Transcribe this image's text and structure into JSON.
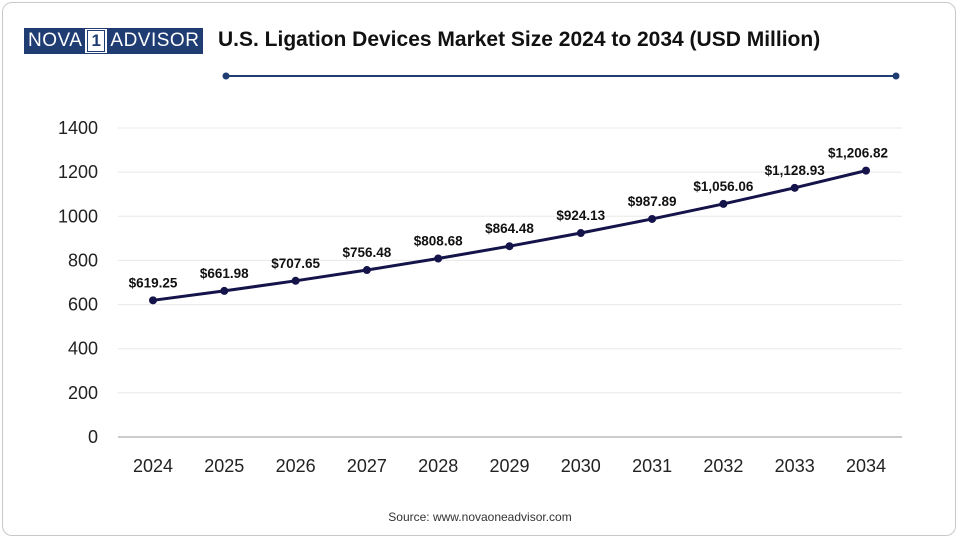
{
  "header": {
    "logo": {
      "left": "NOVA",
      "middle": "1",
      "right": "ADVISOR"
    },
    "title": "U.S. Ligation Devices Market Size 2024 to 2034 (USD Million)"
  },
  "footer": {
    "source": "Source: www.novaoneadvisor.com"
  },
  "colors": {
    "line": "#14134a",
    "accent": "#1f3d73",
    "grid": "#e8e8e8",
    "axis": "#999999"
  },
  "chart_data": {
    "type": "line",
    "title": "U.S. Ligation Devices Market Size 2024 to 2034 (USD Million)",
    "xlabel": "",
    "ylabel": "",
    "categories": [
      "2024",
      "2025",
      "2026",
      "2027",
      "2028",
      "2029",
      "2030",
      "2031",
      "2032",
      "2033",
      "2034"
    ],
    "values": [
      619.25,
      661.98,
      707.65,
      756.48,
      808.68,
      864.48,
      924.13,
      987.89,
      1056.06,
      1128.93,
      1206.82
    ],
    "data_labels": [
      "$619.25",
      "$661.98",
      "$707.65",
      "$756.48",
      "$808.68",
      "$864.48",
      "$924.13",
      "$987.89",
      "$1,056.06",
      "$1,128.93",
      "$1,206.82"
    ],
    "yticks": [
      "0",
      "200",
      "400",
      "600",
      "800",
      "1000",
      "1200",
      "1400"
    ],
    "ylim": [
      0,
      1400
    ],
    "grid": true
  }
}
